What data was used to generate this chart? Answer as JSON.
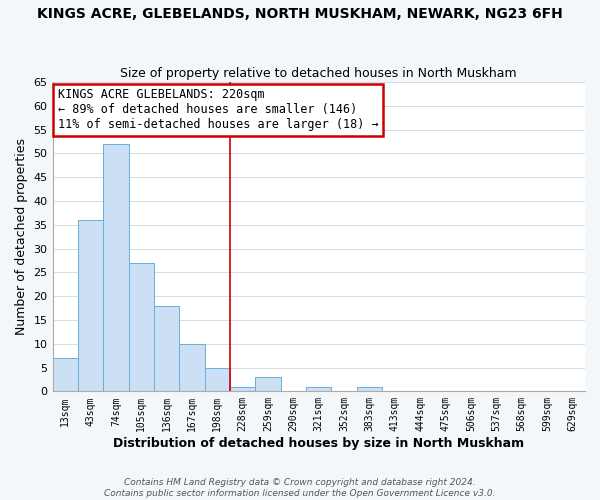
{
  "title": "KINGS ACRE, GLEBELANDS, NORTH MUSKHAM, NEWARK, NG23 6FH",
  "subtitle": "Size of property relative to detached houses in North Muskham",
  "xlabel": "Distribution of detached houses by size in North Muskham",
  "ylabel": "Number of detached properties",
  "bar_labels": [
    "13sqm",
    "43sqm",
    "74sqm",
    "105sqm",
    "136sqm",
    "167sqm",
    "198sqm",
    "228sqm",
    "259sqm",
    "290sqm",
    "321sqm",
    "352sqm",
    "383sqm",
    "413sqm",
    "444sqm",
    "475sqm",
    "506sqm",
    "537sqm",
    "568sqm",
    "599sqm",
    "629sqm"
  ],
  "bar_values": [
    7,
    36,
    52,
    27,
    18,
    10,
    5,
    1,
    3,
    0,
    1,
    0,
    1,
    0,
    0,
    0,
    0,
    0,
    0,
    0,
    0
  ],
  "bar_color": "#cce0f5",
  "bar_edge_color": "#6aaed6",
  "vline_x": 7,
  "vline_color": "#cc0000",
  "ylim": [
    0,
    65
  ],
  "yticks": [
    0,
    5,
    10,
    15,
    20,
    25,
    30,
    35,
    40,
    45,
    50,
    55,
    60,
    65
  ],
  "annotation_title": "KINGS ACRE GLEBELANDS: 220sqm",
  "annotation_line1": "← 89% of detached houses are smaller (146)",
  "annotation_line2": "11% of semi-detached houses are larger (18) →",
  "annotation_box_edge": "#cc0000",
  "footer1": "Contains HM Land Registry data © Crown copyright and database right 2024.",
  "footer2": "Contains public sector information licensed under the Open Government Licence v3.0.",
  "background_color": "#f4f7fa",
  "plot_background": "#ffffff",
  "grid_color": "#d0dce8"
}
